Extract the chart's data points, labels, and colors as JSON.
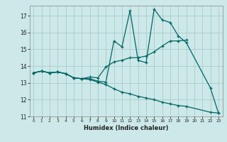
{
  "title": "",
  "xlabel": "Humidex (Indice chaleur)",
  "ylabel": "",
  "bg_color": "#cce8e8",
  "grid_color": "#aacccc",
  "line_color": "#006666",
  "xlim": [
    -0.5,
    23.5
  ],
  "ylim": [
    11,
    17.6
  ],
  "yticks": [
    11,
    12,
    13,
    14,
    15,
    16,
    17
  ],
  "xticks": [
    0,
    1,
    2,
    3,
    4,
    5,
    6,
    7,
    8,
    9,
    10,
    11,
    12,
    13,
    14,
    15,
    16,
    17,
    18,
    19,
    20,
    21,
    22,
    23
  ],
  "series": [
    {
      "x": [
        0,
        1,
        2,
        3,
        4,
        5,
        6,
        7,
        8,
        9,
        10,
        11,
        12,
        13,
        14,
        15,
        16,
        17,
        18,
        19,
        22,
        23
      ],
      "y": [
        13.6,
        13.7,
        13.6,
        13.65,
        13.55,
        13.3,
        13.25,
        13.25,
        13.1,
        13.05,
        15.5,
        15.15,
        17.3,
        14.35,
        14.2,
        17.4,
        16.75,
        16.6,
        15.8,
        15.4,
        12.7,
        11.2
      ]
    },
    {
      "x": [
        0,
        1,
        2,
        3,
        4,
        5,
        6,
        7,
        8,
        9,
        10,
        11,
        12,
        13,
        14,
        15,
        16,
        17,
        18,
        19
      ],
      "y": [
        13.6,
        13.7,
        13.6,
        13.65,
        13.55,
        13.3,
        13.25,
        13.35,
        13.3,
        13.95,
        14.25,
        14.35,
        14.5,
        14.5,
        14.6,
        14.85,
        15.2,
        15.5,
        15.5,
        15.55
      ]
    },
    {
      "x": [
        0,
        1,
        2,
        3,
        4,
        5,
        6,
        7,
        8,
        9,
        10,
        11,
        12,
        13,
        14,
        15,
        16,
        17,
        18,
        19,
        22,
        23
      ],
      "y": [
        13.6,
        13.7,
        13.6,
        13.65,
        13.55,
        13.3,
        13.25,
        13.2,
        13.05,
        12.9,
        12.65,
        12.45,
        12.35,
        12.2,
        12.1,
        12.0,
        11.85,
        11.75,
        11.65,
        11.6,
        11.25,
        11.2
      ]
    }
  ]
}
